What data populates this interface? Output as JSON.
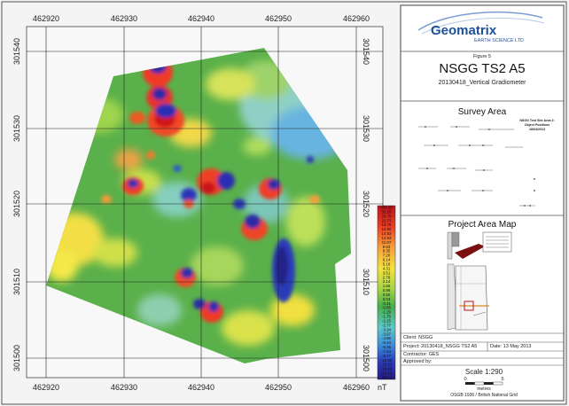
{
  "map": {
    "x_ticks": [
      "462920",
      "462930",
      "462940",
      "462950",
      "462960"
    ],
    "y_ticks": [
      "301540",
      "301530",
      "301520",
      "301510",
      "301500"
    ],
    "unit": "nT",
    "colorbar_labels": [
      "403.20",
      "32.29",
      "26.78",
      "22.73",
      "19.78",
      "16.90",
      "14.53",
      "12.63",
      "11.07",
      "9.63",
      "8.35",
      "7.20",
      "6.14",
      "5.18",
      "4.31",
      "3.51",
      "2.78",
      "2.14",
      "1.55",
      "0.99",
      "0.50",
      "0.03",
      "-0.41",
      "-0.85",
      "-1.29",
      "-1.75",
      "-2.25",
      "-2.77",
      "-3.34",
      "-3.97",
      "-4.66",
      "-5.43",
      "-6.35",
      "-7.44",
      "-8.77",
      "-10.50",
      "-13.02",
      "-16.43",
      "-22.13",
      "-69.12"
    ]
  },
  "panel": {
    "logo_name": "Geomatrix",
    "logo_sub": "EARTH SCIENCE LTD",
    "figure": "Figure 5",
    "title": "NSGG TS2 A5",
    "subtitle": "20130418_Vertical Gradiometer",
    "survey_area_title": "Survey Area",
    "survey_inset": [
      "NSGG Test Site Area 2:",
      "Object Positions",
      "18/04/2013"
    ],
    "project_map_title": "Project Area Map",
    "client": "Client: NSGG",
    "project": "Project: 20130418_NSGG TS2 A5",
    "date": "Date:  13 May 2013",
    "contractor": "Contractor: GES",
    "approved": "Approved by:",
    "scale": "Scale 1:290",
    "scale_ticks": [
      "0",
      "5"
    ],
    "scale_unit": "metres",
    "grid_note": "OSGB 1936 / British National Grid"
  },
  "colors": {
    "accent_blue": "#1d4f9a",
    "neutral_green": "#5ab04a"
  }
}
